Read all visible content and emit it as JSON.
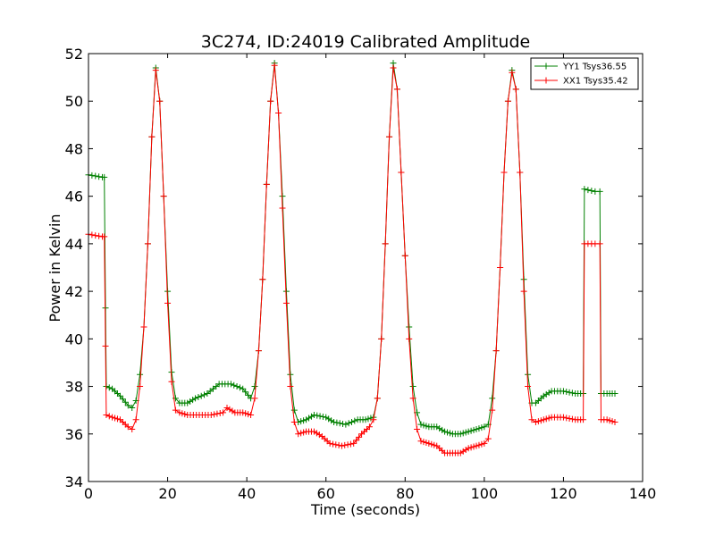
{
  "chart_data": {
    "type": "line",
    "title": "3C274, ID:24019 Calibrated Amplitude",
    "xlabel": "Time (seconds)",
    "ylabel": "Power in Kelvin",
    "xlim": [
      0,
      140
    ],
    "ylim": [
      34,
      52
    ],
    "xticks": [
      0,
      20,
      40,
      60,
      80,
      100,
      120,
      140
    ],
    "yticks": [
      34,
      36,
      38,
      40,
      42,
      44,
      46,
      48,
      50,
      52
    ],
    "grid": false,
    "legend_position": "top-right",
    "marker": "plus",
    "series": [
      {
        "name": "YY1 Tsys36.55",
        "color": "#008000",
        "points": [
          [
            0,
            46.9
          ],
          [
            3.5,
            46.8
          ],
          [
            4,
            46.8
          ],
          [
            4.3,
            41.3
          ],
          [
            4.5,
            38.0
          ],
          [
            6,
            37.9
          ],
          [
            8,
            37.6
          ],
          [
            10,
            37.2
          ],
          [
            11,
            37.1
          ],
          [
            12,
            37.4
          ],
          [
            13,
            38.5
          ],
          [
            14,
            40.5
          ],
          [
            15,
            44.0
          ],
          [
            16,
            48.5
          ],
          [
            17,
            51.4
          ],
          [
            18,
            50.0
          ],
          [
            19,
            46.0
          ],
          [
            20,
            42.0
          ],
          [
            21,
            38.6
          ],
          [
            22,
            37.5
          ],
          [
            23,
            37.3
          ],
          [
            25,
            37.3
          ],
          [
            27,
            37.5
          ],
          [
            30,
            37.7
          ],
          [
            33,
            38.1
          ],
          [
            36,
            38.1
          ],
          [
            39,
            37.9
          ],
          [
            41,
            37.5
          ],
          [
            42,
            38.0
          ],
          [
            43,
            39.5
          ],
          [
            44,
            42.5
          ],
          [
            45,
            46.5
          ],
          [
            46,
            50.0
          ],
          [
            47,
            51.6
          ],
          [
            48,
            49.5
          ],
          [
            49,
            46.0
          ],
          [
            50,
            42.0
          ],
          [
            51,
            38.5
          ],
          [
            52,
            37.0
          ],
          [
            53,
            36.5
          ],
          [
            55,
            36.6
          ],
          [
            57,
            36.8
          ],
          [
            60,
            36.7
          ],
          [
            62,
            36.5
          ],
          [
            65,
            36.4
          ],
          [
            68,
            36.6
          ],
          [
            70,
            36.6
          ],
          [
            72,
            36.7
          ],
          [
            73,
            37.5
          ],
          [
            74,
            40.0
          ],
          [
            75,
            44.0
          ],
          [
            76,
            48.5
          ],
          [
            77,
            51.6
          ],
          [
            78,
            50.5
          ],
          [
            79,
            47.0
          ],
          [
            80,
            43.5
          ],
          [
            81,
            40.5
          ],
          [
            82,
            38.0
          ],
          [
            83,
            36.9
          ],
          [
            84,
            36.4
          ],
          [
            86,
            36.3
          ],
          [
            88,
            36.3
          ],
          [
            90,
            36.1
          ],
          [
            92,
            36.0
          ],
          [
            94,
            36.0
          ],
          [
            96,
            36.1
          ],
          [
            98,
            36.2
          ],
          [
            100,
            36.3
          ],
          [
            101,
            36.4
          ],
          [
            102,
            37.5
          ],
          [
            103,
            39.5
          ],
          [
            104,
            43.0
          ],
          [
            105,
            47.0
          ],
          [
            106,
            50.0
          ],
          [
            107,
            51.3
          ],
          [
            108,
            50.5
          ],
          [
            109,
            47.0
          ],
          [
            110,
            42.5
          ],
          [
            111,
            38.5
          ],
          [
            112,
            37.3
          ],
          [
            113,
            37.3
          ],
          [
            115,
            37.6
          ],
          [
            117,
            37.8
          ],
          [
            120,
            37.8
          ],
          [
            123,
            37.7
          ],
          [
            125,
            37.7
          ],
          [
            125.3,
            46.3
          ],
          [
            128,
            46.2
          ],
          [
            129.2,
            46.2
          ],
          [
            129.5,
            37.7
          ],
          [
            131,
            37.7
          ],
          [
            133,
            37.7
          ]
        ]
      },
      {
        "name": "XX1 Tsys35.42",
        "color": "#ff0000",
        "points": [
          [
            0,
            44.4
          ],
          [
            3.5,
            44.3
          ],
          [
            4,
            44.3
          ],
          [
            4.3,
            39.7
          ],
          [
            4.5,
            36.8
          ],
          [
            6,
            36.7
          ],
          [
            8,
            36.6
          ],
          [
            10,
            36.3
          ],
          [
            11,
            36.2
          ],
          [
            12,
            36.6
          ],
          [
            13,
            38.0
          ],
          [
            14,
            40.5
          ],
          [
            15,
            44.0
          ],
          [
            16,
            48.5
          ],
          [
            17,
            51.3
          ],
          [
            18,
            50.0
          ],
          [
            19,
            46.0
          ],
          [
            20,
            41.5
          ],
          [
            21,
            38.2
          ],
          [
            22,
            37.0
          ],
          [
            23,
            36.9
          ],
          [
            25,
            36.8
          ],
          [
            28,
            36.8
          ],
          [
            31,
            36.8
          ],
          [
            34,
            36.9
          ],
          [
            35,
            37.1
          ],
          [
            37,
            36.9
          ],
          [
            39,
            36.9
          ],
          [
            41,
            36.8
          ],
          [
            42,
            37.5
          ],
          [
            43,
            39.5
          ],
          [
            44,
            42.5
          ],
          [
            45,
            46.5
          ],
          [
            46,
            50.0
          ],
          [
            47,
            51.5
          ],
          [
            48,
            49.5
          ],
          [
            49,
            45.5
          ],
          [
            50,
            41.5
          ],
          [
            51,
            38.0
          ],
          [
            52,
            36.5
          ],
          [
            53,
            36.0
          ],
          [
            55,
            36.1
          ],
          [
            57,
            36.1
          ],
          [
            59,
            35.9
          ],
          [
            61,
            35.6
          ],
          [
            64,
            35.5
          ],
          [
            67,
            35.6
          ],
          [
            69,
            36.0
          ],
          [
            71,
            36.3
          ],
          [
            72,
            36.6
          ],
          [
            73,
            37.5
          ],
          [
            74,
            40.0
          ],
          [
            75,
            44.0
          ],
          [
            76,
            48.5
          ],
          [
            77,
            51.4
          ],
          [
            78,
            50.5
          ],
          [
            79,
            47.0
          ],
          [
            80,
            43.5
          ],
          [
            81,
            40.0
          ],
          [
            82,
            37.5
          ],
          [
            83,
            36.2
          ],
          [
            84,
            35.7
          ],
          [
            86,
            35.6
          ],
          [
            88,
            35.5
          ],
          [
            90,
            35.2
          ],
          [
            92,
            35.2
          ],
          [
            94,
            35.2
          ],
          [
            96,
            35.4
          ],
          [
            98,
            35.5
          ],
          [
            100,
            35.6
          ],
          [
            101,
            35.8
          ],
          [
            102,
            37.0
          ],
          [
            103,
            39.5
          ],
          [
            104,
            43.0
          ],
          [
            105,
            47.0
          ],
          [
            106,
            50.0
          ],
          [
            107,
            51.2
          ],
          [
            108,
            50.5
          ],
          [
            109,
            47.0
          ],
          [
            110,
            42.0
          ],
          [
            111,
            38.0
          ],
          [
            112,
            36.6
          ],
          [
            113,
            36.5
          ],
          [
            115,
            36.6
          ],
          [
            117,
            36.7
          ],
          [
            120,
            36.7
          ],
          [
            123,
            36.6
          ],
          [
            125,
            36.6
          ],
          [
            125.3,
            44.0
          ],
          [
            128,
            44.0
          ],
          [
            129.2,
            44.0
          ],
          [
            129.5,
            36.6
          ],
          [
            131,
            36.6
          ],
          [
            133,
            36.5
          ]
        ]
      }
    ]
  }
}
